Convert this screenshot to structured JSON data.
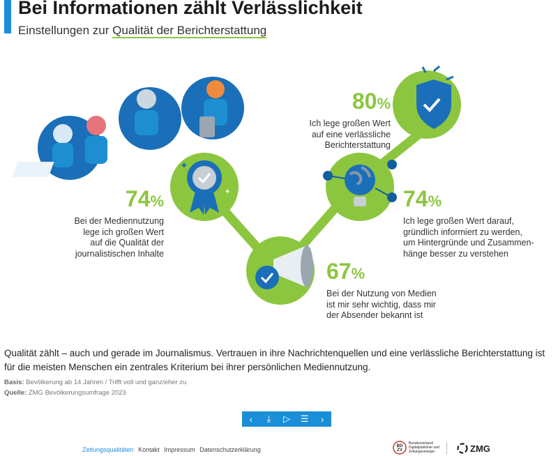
{
  "header": {
    "title": "Bei Informationen zählt Verlässlichkeit",
    "subtitle_prefix": "Einstellungen zur ",
    "subtitle_highlight": "Qualität der Berichterstattung"
  },
  "stats": [
    {
      "value": "80",
      "unit": "%",
      "lines": [
        "Ich lege großen Wert",
        "auf eine verlässliche",
        "Berichterstattung"
      ]
    },
    {
      "value": "74",
      "unit": "%",
      "lines": [
        "Bei der Mediennutzung",
        "lege ich großen Wert",
        "auf die Qualität der",
        "journalistischen Inhalte"
      ]
    },
    {
      "value": "74",
      "unit": "%",
      "lines": [
        "Ich lege großen Wert darauf,",
        "gründlich informiert zu werden,",
        "um Hintergründe und Zusammen-",
        "hänge besser zu verstehen"
      ]
    },
    {
      "value": "67",
      "unit": "%",
      "lines": [
        "Bei der Nutzung von Medien",
        "ist mir sehr wichtig, dass mir",
        "der Absender bekannt ist"
      ]
    }
  ],
  "body_text": "Qualität zählt – auch und gerade im Journalismus. Vertrauen in ihre Nachrichtenquellen und eine verlässliche Berichterstattung ist für die meisten Menschen ein zentrales Kriterium bei ihrer persönlichen Mediennutzung.",
  "basis": {
    "label": "Basis:",
    "text": "Bevölkerung ab 14 Jahren / Trifft voll und ganz/eher zu"
  },
  "source": {
    "label": "Quelle:",
    "text": "ZMG Bevölkerungsumfrage 2023"
  },
  "nav": {
    "prev": "‹",
    "download": "⤓",
    "play": "▷",
    "menu": "☰",
    "next": "›"
  },
  "footer": {
    "links": [
      "Zeitungsqualitäten",
      "Kontakt",
      "Impressum",
      "Datenschutzerklärung"
    ]
  },
  "logos": {
    "bdzv_text": "Bundesverband Digitalpublisher und Zeitungsverleger",
    "bdzv_mark": "BD ZV",
    "zmg_text": "ZMG"
  },
  "colors": {
    "green": "#8cc63f",
    "blue": "#1a8fd8",
    "dark_blue": "#0f5f9e",
    "accent": "#1a8fd8"
  }
}
